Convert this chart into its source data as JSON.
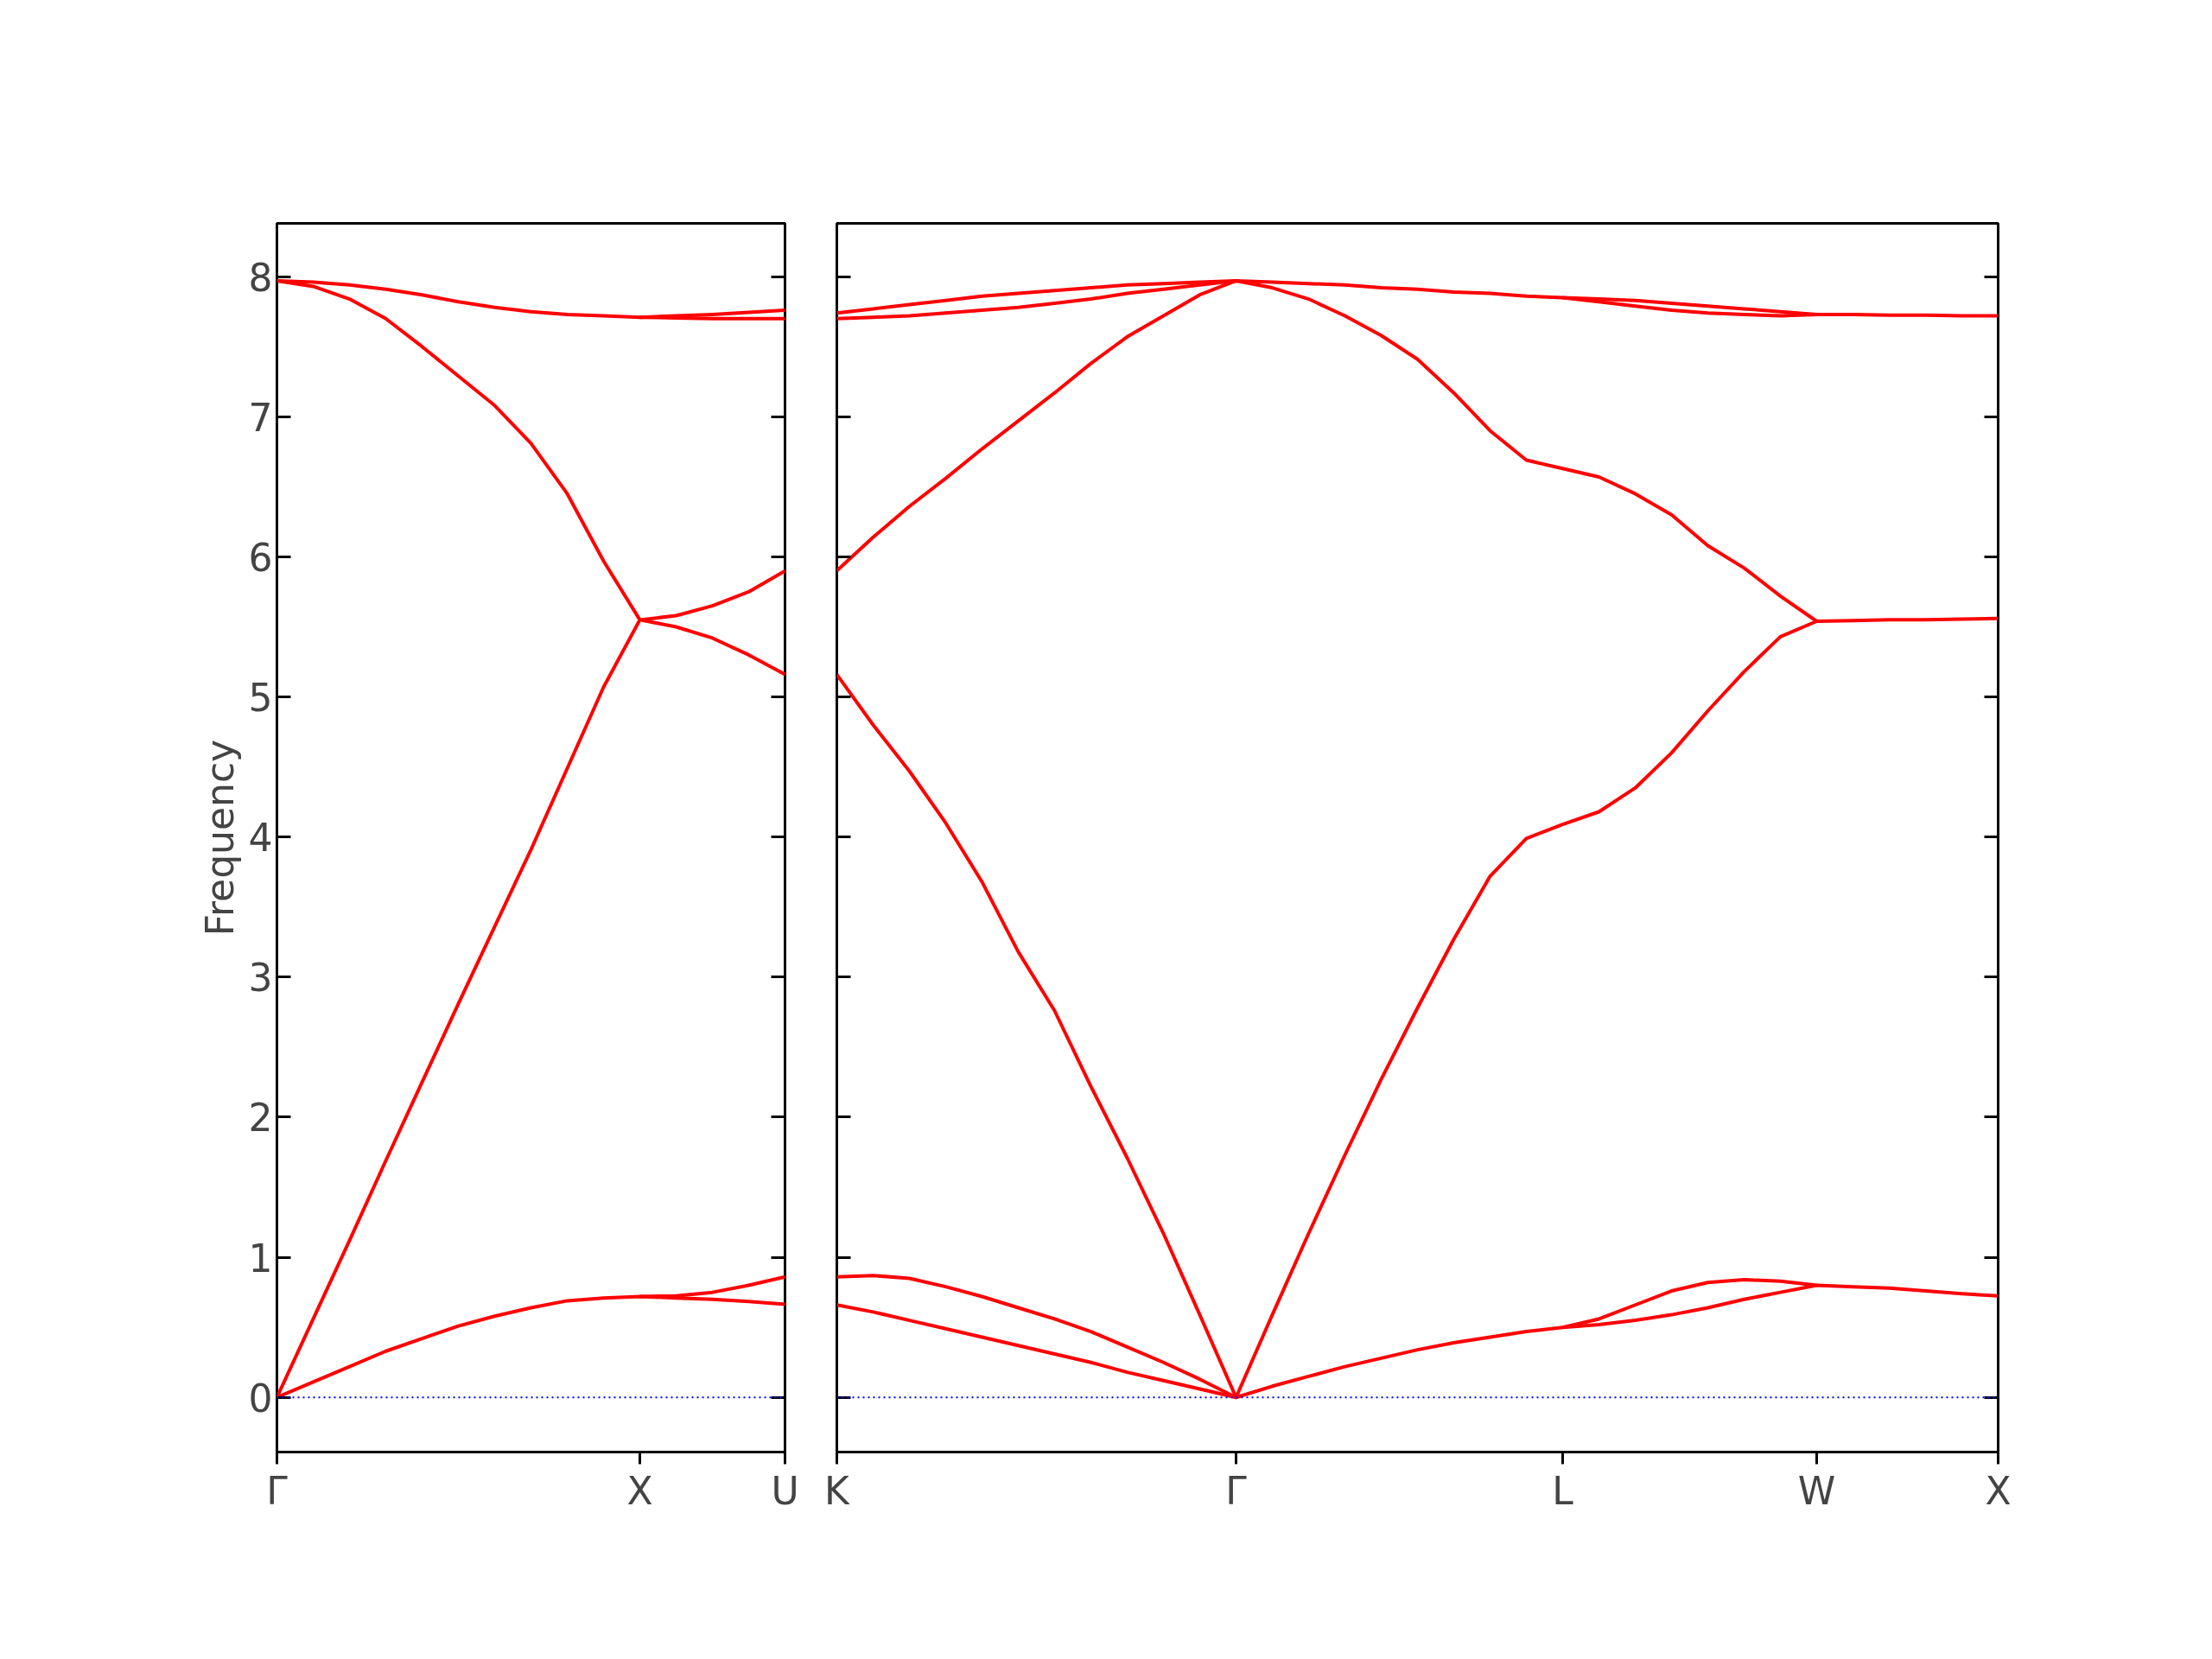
{
  "chart_data": [
    {
      "type": "line",
      "ylabel": "Frequency",
      "ylim": [
        -0.39,
        8.38
      ],
      "yticks": [
        0,
        1,
        2,
        3,
        4,
        5,
        6,
        7,
        8
      ],
      "line_style": "solid",
      "categories": [
        "Γ",
        null,
        null,
        null,
        null,
        null,
        null,
        null,
        null,
        null,
        "X",
        null,
        null,
        null,
        "U"
      ],
      "ref_lines": [
        {
          "axis": "y",
          "value": 0,
          "color": "#0000ff",
          "line_style": "dotted"
        }
      ],
      "series": [
        {
          "color": "#ff0000",
          "values": [
            0,
            0.11,
            0.22,
            0.33,
            0.42,
            0.51,
            0.58,
            0.64,
            0.69,
            0.71,
            0.72,
            0.71,
            0.7,
            0.685,
            0.665
          ]
        },
        {
          "color": "#ff0000",
          "values": [
            null,
            null,
            null,
            null,
            null,
            null,
            null,
            null,
            null,
            null,
            0.72,
            0.725,
            0.75,
            0.8,
            0.86
          ]
        },
        {
          "color": "#ff0000",
          "values": [
            0,
            0.56,
            1.12,
            1.69,
            2.25,
            2.81,
            3.36,
            3.91,
            4.49,
            5.07,
            5.55,
            5.58,
            5.65,
            5.75,
            5.9
          ]
        },
        {
          "color": "#ff0000",
          "values": [
            7.97,
            7.93,
            7.84,
            7.7,
            7.5,
            7.29,
            7.08,
            6.81,
            6.45,
            5.97,
            5.55,
            5.5,
            5.42,
            5.3,
            5.16
          ]
        },
        {
          "color": "#ff0000",
          "values": [
            7.97,
            7.96,
            7.94,
            7.91,
            7.87,
            7.82,
            7.78,
            7.75,
            7.73,
            7.72,
            7.71,
            7.72,
            7.73,
            7.745,
            7.76
          ]
        },
        {
          "color": "#ff0000",
          "values": [
            null,
            null,
            null,
            null,
            null,
            null,
            null,
            null,
            null,
            null,
            7.71,
            7.705,
            7.7,
            7.7,
            7.7
          ]
        }
      ]
    },
    {
      "type": "line",
      "tick_labels": "x",
      "ylim": [
        -0.39,
        8.38
      ],
      "yticks": [
        0,
        1,
        2,
        3,
        4,
        5,
        6,
        7,
        8
      ],
      "line_style": "solid",
      "categories": [
        "K",
        null,
        null,
        null,
        null,
        null,
        null,
        null,
        null,
        null,
        null,
        "Γ",
        null,
        null,
        null,
        null,
        null,
        null,
        null,
        null,
        "L",
        null,
        null,
        null,
        null,
        null,
        null,
        "W",
        null,
        null,
        null,
        null,
        "X"
      ],
      "ref_lines": [
        {
          "axis": "y",
          "value": 0,
          "color": "#0000ff",
          "line_style": "dotted"
        }
      ],
      "series": [
        {
          "color": "#ff0000",
          "values": [
            0.66,
            0.61,
            0.55,
            0.49,
            0.43,
            0.37,
            0.31,
            0.25,
            0.18,
            0.12,
            0.06,
            0,
            0.08,
            0.15,
            0.22,
            0.28,
            0.34,
            0.39,
            0.43,
            0.47,
            0.5,
            0.52,
            0.55,
            0.59,
            0.64,
            0.7,
            0.75,
            0.8,
            0.79,
            0.78,
            0.76,
            0.74,
            0.725
          ]
        },
        {
          "color": "#ff0000",
          "values": [
            0.86,
            0.87,
            0.85,
            0.79,
            0.72,
            0.64,
            0.56,
            0.47,
            0.36,
            0.25,
            0.13,
            0,
            null,
            null,
            null,
            null,
            null,
            null,
            null,
            null,
            null,
            null,
            null,
            null,
            null,
            null,
            null,
            null,
            null,
            null,
            null,
            null,
            null
          ]
        },
        {
          "color": "#ff0000",
          "values": [
            null,
            null,
            null,
            null,
            null,
            null,
            null,
            null,
            null,
            null,
            null,
            null,
            null,
            null,
            null,
            null,
            null,
            null,
            null,
            null,
            0.5,
            0.56,
            0.66,
            0.76,
            0.82,
            0.84,
            0.83,
            0.8,
            null,
            null,
            null,
            null,
            null
          ]
        },
        {
          "color": "#ff0000",
          "values": [
            5.16,
            4.8,
            4.47,
            4.1,
            3.68,
            3.18,
            2.76,
            2.22,
            1.71,
            1.17,
            0.59,
            0,
            0.59,
            1.17,
            1.73,
            2.27,
            2.78,
            3.27,
            3.72,
            3.99,
            4.09,
            4.18,
            4.35,
            4.6,
            4.9,
            5.18,
            5.43,
            5.54,
            5.545,
            5.55,
            5.55,
            5.555,
            5.56
          ]
        },
        {
          "color": "#ff0000",
          "values": [
            5.9,
            6.14,
            6.36,
            6.56,
            6.77,
            6.97,
            7.17,
            7.38,
            7.57,
            7.72,
            7.87,
            7.97,
            7.92,
            7.84,
            7.72,
            7.58,
            7.41,
            7.17,
            6.9,
            6.69,
            6.63,
            6.57,
            6.45,
            6.3,
            6.08,
            5.92,
            5.72,
            5.54,
            null,
            null,
            null,
            null,
            null
          ]
        },
        {
          "color": "#ff0000",
          "values": [
            7.7,
            7.71,
            7.72,
            7.74,
            7.76,
            7.78,
            7.81,
            7.84,
            7.88,
            7.91,
            7.94,
            7.97,
            7.96,
            7.95,
            7.94,
            7.92,
            7.91,
            7.89,
            7.88,
            7.86,
            7.85,
            7.84,
            7.83,
            7.81,
            7.79,
            7.77,
            7.75,
            7.73,
            7.73,
            7.725,
            7.725,
            7.72,
            7.72
          ]
        },
        {
          "color": "#ff0000",
          "values": [
            7.74,
            7.77,
            7.8,
            7.83,
            7.86,
            7.88,
            7.9,
            7.92,
            7.94,
            7.95,
            7.96,
            7.97,
            null,
            null,
            null,
            null,
            null,
            null,
            null,
            null,
            null,
            null,
            null,
            null,
            null,
            null,
            null,
            null,
            null,
            null,
            null,
            null,
            null
          ]
        },
        {
          "color": "#ff0000",
          "values": [
            null,
            null,
            null,
            null,
            null,
            null,
            null,
            null,
            null,
            null,
            null,
            null,
            null,
            null,
            null,
            null,
            null,
            null,
            null,
            null,
            7.85,
            7.82,
            7.79,
            7.76,
            7.74,
            7.73,
            7.72,
            7.73,
            null,
            null,
            null,
            null,
            null
          ]
        }
      ]
    }
  ]
}
